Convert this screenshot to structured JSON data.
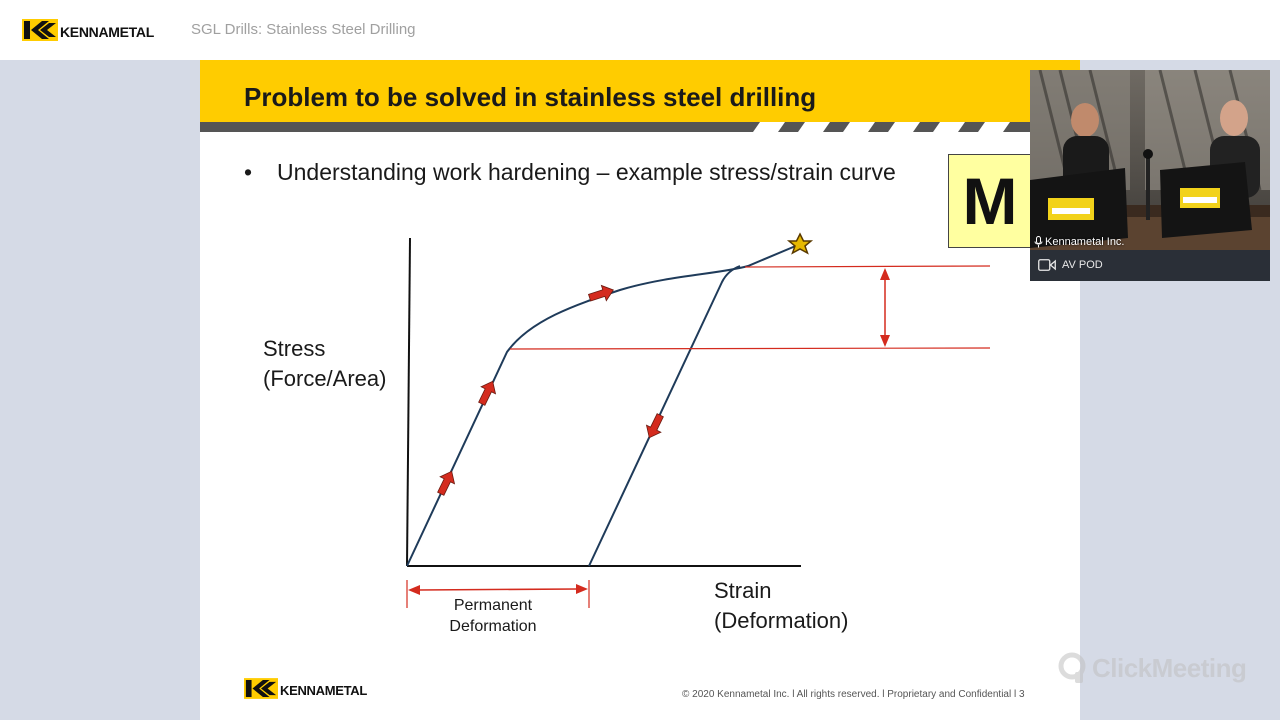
{
  "header": {
    "brand": "KENNAMETAL",
    "session_title": "SGL Drills: Stainless Steel Drilling",
    "colors": {
      "brand_yellow": "#ffcc00",
      "background": "#d5dae6"
    }
  },
  "slide": {
    "title": "Problem to be solved in stainless steel drilling",
    "bullet": "Understanding work hardening – example stress/strain curve",
    "badge": "M",
    "diagram": {
      "y_label_line1": "Stress",
      "y_label_line2": "(Force/Area)",
      "x_label_line1": "Strain",
      "x_label_line2": "(Deformation)",
      "permanent_line1": "Permanent",
      "permanent_line2": "Deformation",
      "arrow_color": "#d42b1e",
      "curve_color": "#1f3b5a"
    },
    "footer_brand": "KENNAMETAL",
    "copyright": "© 2020 Kennametal Inc.  l  All rights reserved.  l  Proprietary and Confidential  l  3"
  },
  "video": {
    "participant_name": "Kennametal Inc.",
    "mic_icon": "microphone-icon",
    "camera_icon": "camera-icon",
    "pod_label": "AV POD"
  },
  "watermark": {
    "text": "ClickMeeting",
    "icon": "clickmeeting-logo-icon"
  }
}
